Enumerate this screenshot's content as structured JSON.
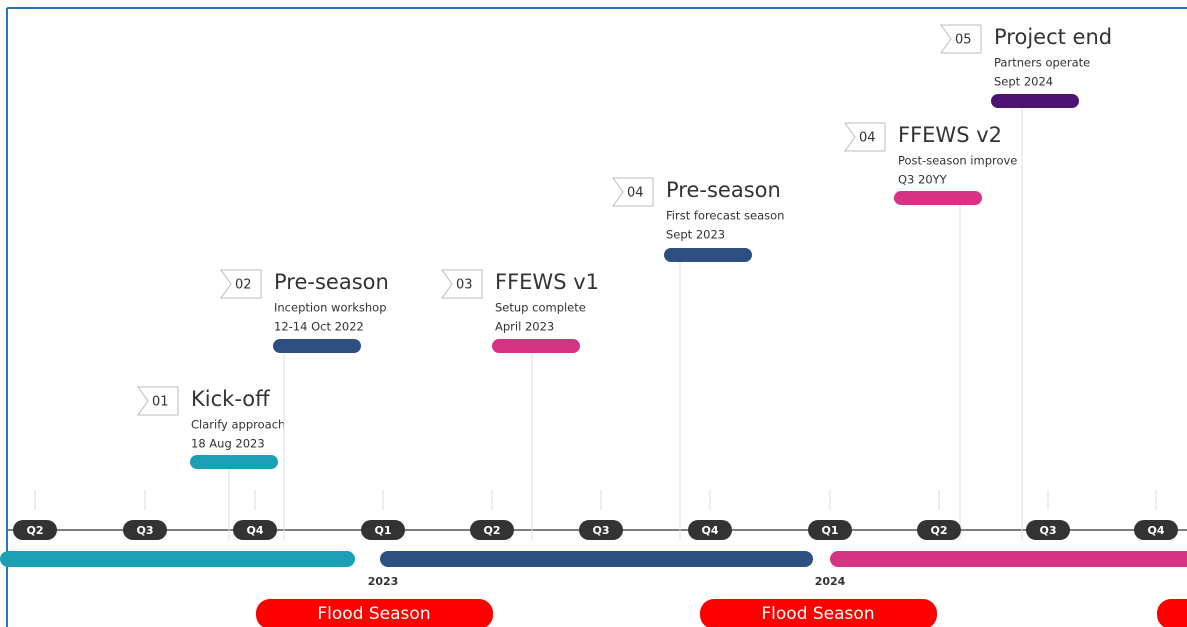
{
  "milestones": [
    {
      "number": "01",
      "title": "Kick-off",
      "subtitle": "Clarify approach",
      "date": "18 Aug 2023",
      "color": "#1a9fb5"
    },
    {
      "number": "02",
      "title": "Pre-season",
      "subtitle": "Inception workshop",
      "date": "12-14 Oct 2022",
      "color": "#2d5080"
    },
    {
      "number": "03",
      "title": "FFEWS v1",
      "subtitle": "Setup complete",
      "date": "April 2023",
      "color": "#d63384"
    },
    {
      "number": "04",
      "title": "Pre-season",
      "subtitle": "First forecast season",
      "date": "Sept 2023",
      "color": "#2d5080"
    },
    {
      "number": "04",
      "title": "FFEWS v2",
      "subtitle": "Post-season improve",
      "date": "Q3 20YY",
      "color": "#d63384"
    },
    {
      "number": "05",
      "title": "Project end",
      "subtitle": "Partners operate",
      "date": "Sept 2024",
      "color": "#4b1470"
    }
  ],
  "quarters": [
    "Q2",
    "Q3",
    "Q4",
    "Q1",
    "Q2",
    "Q3",
    "Q4",
    "Q1",
    "Q2",
    "Q3",
    "Q4"
  ],
  "years": [
    "2023",
    "2024"
  ],
  "seasons": [
    "Flood Season",
    "Flood Season"
  ]
}
